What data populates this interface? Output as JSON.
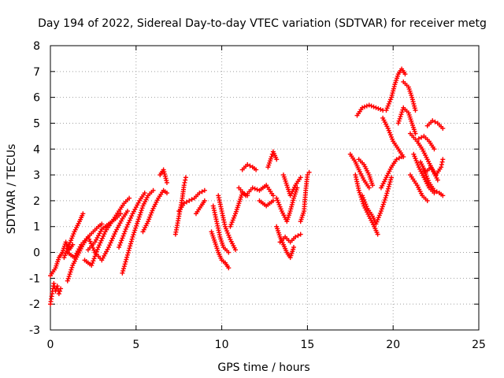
{
  "chart_data": {
    "type": "scatter",
    "title": "Day 194 of 2022, Sidereal Day-to-day VTEC variation (SDTVAR) for receiver metg",
    "xlabel": "GPS time / hours",
    "ylabel": "SDTVAR / TECUs",
    "xlim": [
      0,
      25
    ],
    "ylim": [
      -3,
      8
    ],
    "xticks": [
      0,
      5,
      10,
      15,
      20,
      25
    ],
    "yticks": [
      -3,
      -2,
      -1,
      0,
      1,
      2,
      3,
      4,
      5,
      6,
      7,
      8
    ],
    "grid": true,
    "marker": "+",
    "color": "#ff0000",
    "series": [
      {
        "name": "SDTVAR",
        "segments": [
          [
            [
              0.0,
              -2.0
            ],
            [
              0.1,
              -1.6
            ],
            [
              0.2,
              -1.2
            ],
            [
              0.3,
              -1.5
            ],
            [
              0.4,
              -1.3
            ],
            [
              0.5,
              -1.6
            ],
            [
              0.6,
              -1.4
            ]
          ],
          [
            [
              0.0,
              -0.9
            ],
            [
              0.3,
              -0.6
            ],
            [
              0.5,
              -0.2
            ],
            [
              0.7,
              0.0
            ],
            [
              0.9,
              0.4
            ],
            [
              1.1,
              0.1
            ],
            [
              1.3,
              0.3
            ]
          ],
          [
            [
              1.0,
              -1.1
            ],
            [
              1.3,
              -0.5
            ],
            [
              1.6,
              -0.1
            ],
            [
              1.9,
              0.3
            ],
            [
              2.2,
              0.6
            ],
            [
              2.5,
              0.8
            ],
            [
              2.8,
              1.0
            ],
            [
              3.0,
              1.1
            ]
          ],
          [
            [
              0.8,
              -0.2
            ],
            [
              1.1,
              0.3
            ],
            [
              1.4,
              0.8
            ],
            [
              1.7,
              1.2
            ],
            [
              1.9,
              1.5
            ]
          ],
          [
            [
              1.0,
              0.0
            ],
            [
              1.4,
              -0.2
            ],
            [
              1.8,
              0.3
            ],
            [
              2.2,
              0.6
            ],
            [
              2.6,
              0.0
            ],
            [
              3.0,
              -0.3
            ],
            [
              3.4,
              0.2
            ],
            [
              3.8,
              0.8
            ],
            [
              4.2,
              1.3
            ],
            [
              4.5,
              1.6
            ]
          ],
          [
            [
              2.0,
              -0.3
            ],
            [
              2.4,
              -0.5
            ],
            [
              2.8,
              0.2
            ],
            [
              3.2,
              0.8
            ],
            [
              3.6,
              1.2
            ],
            [
              4.0,
              1.6
            ],
            [
              4.3,
              1.9
            ],
            [
              4.6,
              2.1
            ]
          ],
          [
            [
              2.2,
              0.1
            ],
            [
              2.6,
              0.4
            ],
            [
              3.0,
              0.9
            ],
            [
              3.4,
              1.1
            ],
            [
              3.8,
              1.3
            ],
            [
              4.1,
              1.5
            ]
          ],
          [
            [
              4.2,
              -0.8
            ],
            [
              4.5,
              -0.1
            ],
            [
              4.8,
              0.6
            ],
            [
              5.1,
              1.2
            ],
            [
              5.4,
              1.8
            ],
            [
              5.7,
              2.2
            ],
            [
              6.0,
              2.4
            ]
          ],
          [
            [
              4.0,
              0.2
            ],
            [
              4.4,
              0.9
            ],
            [
              4.8,
              1.5
            ],
            [
              5.2,
              2.0
            ],
            [
              5.5,
              2.3
            ]
          ],
          [
            [
              5.4,
              0.8
            ],
            [
              5.7,
              1.2
            ],
            [
              6.0,
              1.7
            ],
            [
              6.3,
              2.1
            ],
            [
              6.6,
              2.4
            ],
            [
              6.8,
              2.3
            ]
          ],
          [
            [
              6.4,
              3.0
            ],
            [
              6.6,
              3.2
            ],
            [
              6.8,
              2.7
            ]
          ],
          [
            [
              7.3,
              0.7
            ],
            [
              7.5,
              1.4
            ],
            [
              7.7,
              2.1
            ],
            [
              7.8,
              2.6
            ],
            [
              7.9,
              2.9
            ]
          ],
          [
            [
              7.5,
              1.6
            ],
            [
              7.8,
              1.9
            ],
            [
              8.1,
              2.0
            ],
            [
              8.4,
              2.1
            ],
            [
              8.7,
              2.3
            ],
            [
              9.0,
              2.4
            ]
          ],
          [
            [
              8.5,
              1.5
            ],
            [
              8.8,
              1.8
            ],
            [
              9.0,
              2.0
            ]
          ],
          [
            [
              9.5,
              1.8
            ],
            [
              9.7,
              1.2
            ],
            [
              9.9,
              0.6
            ],
            [
              10.1,
              0.2
            ],
            [
              10.4,
              0.0
            ]
          ],
          [
            [
              9.4,
              0.8
            ],
            [
              9.6,
              0.4
            ],
            [
              9.8,
              0.0
            ],
            [
              10.0,
              -0.3
            ],
            [
              10.2,
              -0.4
            ],
            [
              10.4,
              -0.6
            ]
          ],
          [
            [
              9.8,
              2.2
            ],
            [
              10.0,
              1.6
            ],
            [
              10.2,
              1.0
            ],
            [
              10.5,
              0.5
            ],
            [
              10.8,
              0.1
            ]
          ],
          [
            [
              10.5,
              1.0
            ],
            [
              10.8,
              1.5
            ],
            [
              11.0,
              1.9
            ],
            [
              11.2,
              2.3
            ],
            [
              11.5,
              2.2
            ]
          ],
          [
            [
              11.0,
              2.5
            ],
            [
              11.4,
              2.2
            ],
            [
              11.8,
              2.5
            ],
            [
              12.2,
              2.4
            ],
            [
              12.6,
              2.6
            ],
            [
              13.0,
              2.2
            ]
          ],
          [
            [
              11.2,
              3.2
            ],
            [
              11.5,
              3.4
            ],
            [
              11.8,
              3.3
            ],
            [
              12.0,
              3.2
            ]
          ],
          [
            [
              12.7,
              3.3
            ],
            [
              12.9,
              3.7
            ],
            [
              13.0,
              3.9
            ],
            [
              13.2,
              3.6
            ]
          ],
          [
            [
              12.2,
              2.0
            ],
            [
              12.6,
              1.8
            ],
            [
              13.0,
              2.0
            ]
          ],
          [
            [
              13.2,
              2.1
            ],
            [
              13.5,
              1.6
            ],
            [
              13.8,
              1.2
            ],
            [
              14.0,
              1.6
            ],
            [
              14.2,
              2.1
            ],
            [
              14.4,
              2.5
            ]
          ],
          [
            [
              13.6,
              3.0
            ],
            [
              13.8,
              2.6
            ],
            [
              14.0,
              2.2
            ],
            [
              14.3,
              2.6
            ],
            [
              14.6,
              2.9
            ]
          ],
          [
            [
              13.2,
              1.0
            ],
            [
              13.4,
              0.6
            ],
            [
              13.6,
              0.3
            ],
            [
              13.8,
              0.0
            ],
            [
              14.0,
              -0.2
            ],
            [
              14.2,
              0.2
            ]
          ],
          [
            [
              13.4,
              0.4
            ],
            [
              13.7,
              0.6
            ],
            [
              14.0,
              0.4
            ],
            [
              14.3,
              0.6
            ],
            [
              14.6,
              0.7
            ]
          ],
          [
            [
              14.6,
              1.2
            ],
            [
              14.8,
              1.6
            ],
            [
              14.9,
              2.4
            ],
            [
              15.0,
              3.0
            ],
            [
              15.1,
              3.1
            ]
          ],
          [
            [
              17.5,
              3.8
            ],
            [
              17.8,
              3.5
            ],
            [
              18.0,
              3.2
            ],
            [
              18.3,
              2.8
            ],
            [
              18.6,
              2.5
            ]
          ],
          [
            [
              17.8,
              3.0
            ],
            [
              18.0,
              2.4
            ],
            [
              18.3,
              1.8
            ],
            [
              18.6,
              1.4
            ],
            [
              18.9,
              1.0
            ],
            [
              19.1,
              0.7
            ]
          ],
          [
            [
              18.2,
              2.2
            ],
            [
              18.5,
              1.7
            ],
            [
              18.8,
              1.4
            ],
            [
              19.0,
              1.1
            ],
            [
              19.3,
              1.6
            ],
            [
              19.6,
              2.2
            ],
            [
              19.9,
              2.9
            ]
          ],
          [
            [
              18.0,
              3.6
            ],
            [
              18.3,
              3.4
            ],
            [
              18.6,
              3.0
            ],
            [
              18.8,
              2.6
            ]
          ],
          [
            [
              19.3,
              2.5
            ],
            [
              19.6,
              2.9
            ],
            [
              19.9,
              3.3
            ],
            [
              20.2,
              3.6
            ],
            [
              20.5,
              3.7
            ]
          ],
          [
            [
              17.9,
              5.3
            ],
            [
              18.2,
              5.6
            ],
            [
              18.6,
              5.7
            ],
            [
              19.0,
              5.6
            ],
            [
              19.4,
              5.5
            ]
          ],
          [
            [
              19.4,
              5.2
            ],
            [
              19.7,
              4.8
            ],
            [
              20.0,
              4.3
            ],
            [
              20.3,
              4.0
            ],
            [
              20.6,
              3.7
            ]
          ],
          [
            [
              19.6,
              5.5
            ],
            [
              19.9,
              6.0
            ],
            [
              20.1,
              6.5
            ],
            [
              20.3,
              6.9
            ],
            [
              20.5,
              7.1
            ],
            [
              20.7,
              6.9
            ]
          ],
          [
            [
              20.6,
              6.6
            ],
            [
              20.9,
              6.4
            ],
            [
              21.1,
              6.0
            ],
            [
              21.3,
              5.5
            ]
          ],
          [
            [
              20.3,
              5.0
            ],
            [
              20.6,
              5.6
            ],
            [
              20.9,
              5.4
            ],
            [
              21.1,
              5.0
            ],
            [
              21.3,
              4.6
            ]
          ],
          [
            [
              21.0,
              4.6
            ],
            [
              21.4,
              4.3
            ],
            [
              21.7,
              4.0
            ],
            [
              22.0,
              3.6
            ],
            [
              22.3,
              3.2
            ],
            [
              22.6,
              2.8
            ]
          ],
          [
            [
              21.2,
              3.8
            ],
            [
              21.5,
              3.3
            ],
            [
              21.8,
              2.9
            ],
            [
              22.1,
              2.5
            ],
            [
              22.4,
              2.3
            ]
          ],
          [
            [
              21.0,
              3.0
            ],
            [
              21.4,
              2.6
            ],
            [
              21.7,
              2.2
            ],
            [
              22.0,
              2.0
            ]
          ],
          [
            [
              22.0,
              4.9
            ],
            [
              22.3,
              5.1
            ],
            [
              22.6,
              5.0
            ],
            [
              22.9,
              4.8
            ]
          ],
          [
            [
              21.8,
              3.2
            ],
            [
              22.1,
              2.7
            ],
            [
              22.4,
              2.4
            ],
            [
              22.7,
              2.3
            ],
            [
              22.9,
              2.2
            ]
          ],
          [
            [
              21.6,
              3.5
            ],
            [
              21.9,
              3.1
            ],
            [
              22.2,
              3.3
            ],
            [
              22.5,
              3.0
            ],
            [
              22.8,
              3.3
            ],
            [
              22.9,
              3.6
            ]
          ],
          [
            [
              21.5,
              4.4
            ],
            [
              21.8,
              4.5
            ],
            [
              22.1,
              4.3
            ],
            [
              22.4,
              4.0
            ]
          ]
        ]
      }
    ]
  }
}
